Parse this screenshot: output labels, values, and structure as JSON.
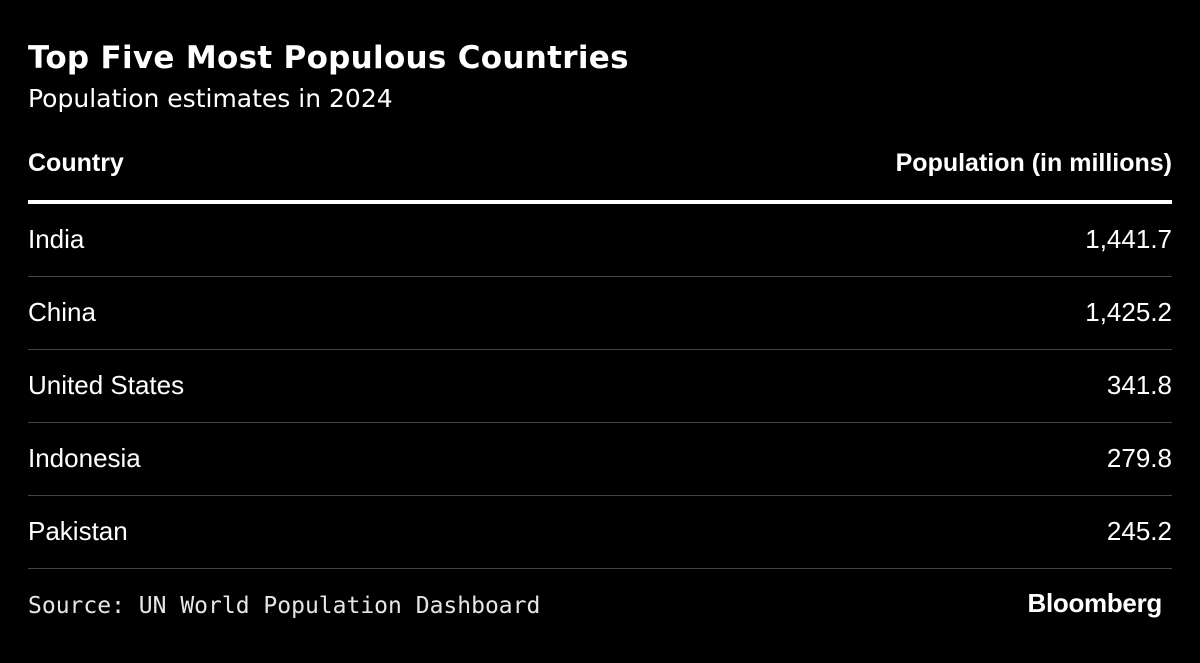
{
  "title": "Top Five Most Populous Countries",
  "subtitle": "Population estimates in 2024",
  "source": "Source: UN World Population Dashboard",
  "brand": "Bloomberg",
  "colors": {
    "background": "#000000",
    "text": "#ffffff",
    "header_rule": "#ffffff",
    "row_rule": "#444444"
  },
  "chart_data": {
    "type": "table",
    "title": "Top Five Most Populous Countries",
    "subtitle": "Population estimates in 2024",
    "columns": [
      "Country",
      "Population (in millions)"
    ],
    "rows": [
      {
        "country": "India",
        "population": "1,441.7"
      },
      {
        "country": "China",
        "population": "1,425.2"
      },
      {
        "country": "United States",
        "population": "341.8"
      },
      {
        "country": "Indonesia",
        "population": "279.8"
      },
      {
        "country": "Pakistan",
        "population": "245.2"
      }
    ]
  }
}
